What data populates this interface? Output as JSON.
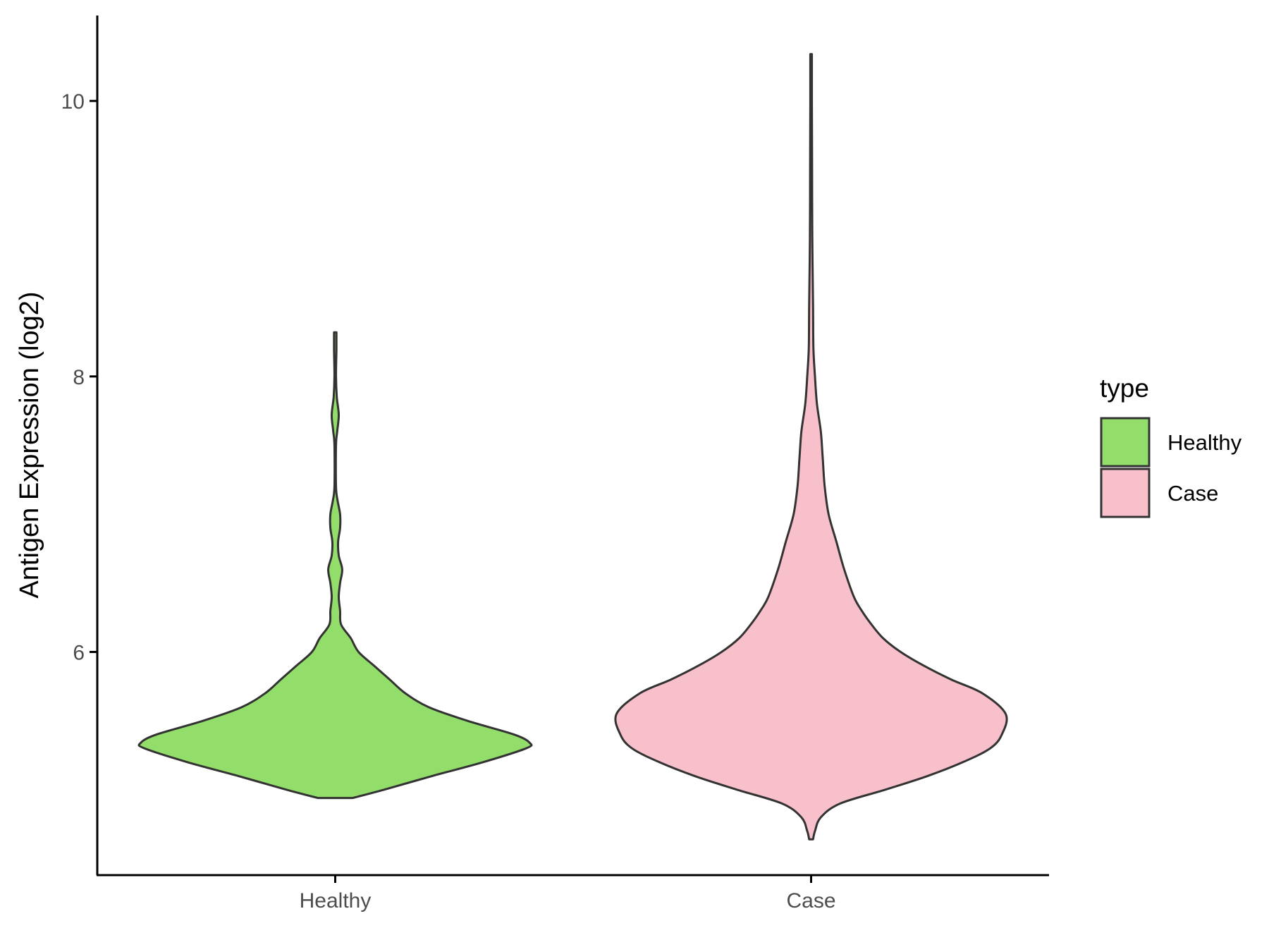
{
  "chart_data": {
    "type": "violin",
    "title": "",
    "xlabel": "",
    "ylabel": "Antigen Expression (log2)",
    "ylim": [
      4.38,
      10.62
    ],
    "y_ticks": [
      6,
      8,
      10
    ],
    "y_tick_labels": [
      "6",
      "8",
      "10"
    ],
    "grid": false,
    "legend": {
      "title": "type",
      "position": "right",
      "entries": [
        "Healthy",
        "Case"
      ]
    },
    "categories": [
      "Healthy",
      "Case"
    ],
    "series": [
      {
        "name": "Healthy",
        "color": "#93DD6B",
        "density_profile": [
          [
            4.94,
            0.09
          ],
          [
            5.0,
            0.25
          ],
          [
            5.1,
            0.5
          ],
          [
            5.2,
            0.76
          ],
          [
            5.3,
            0.98
          ],
          [
            5.34,
            1.0
          ],
          [
            5.4,
            0.92
          ],
          [
            5.5,
            0.68
          ],
          [
            5.6,
            0.48
          ],
          [
            5.7,
            0.36
          ],
          [
            5.8,
            0.28
          ],
          [
            5.9,
            0.2
          ],
          [
            6.0,
            0.12
          ],
          [
            6.1,
            0.08
          ],
          [
            6.2,
            0.03
          ],
          [
            6.3,
            0.025
          ],
          [
            6.4,
            0.018
          ],
          [
            6.5,
            0.025
          ],
          [
            6.6,
            0.036
          ],
          [
            6.7,
            0.018
          ],
          [
            6.8,
            0.015
          ],
          [
            6.9,
            0.025
          ],
          [
            7.0,
            0.025
          ],
          [
            7.1,
            0.012
          ],
          [
            7.2,
            0.004
          ],
          [
            7.5,
            0.004
          ],
          [
            7.6,
            0.01
          ],
          [
            7.72,
            0.018
          ],
          [
            7.85,
            0.008
          ],
          [
            8.0,
            0.004
          ],
          [
            8.2,
            0.006
          ],
          [
            8.32,
            0.006
          ]
        ]
      },
      {
        "name": "Case",
        "color": "#F8C0CB",
        "density_profile": [
          [
            4.64,
            0.01
          ],
          [
            4.7,
            0.02
          ],
          [
            4.8,
            0.05
          ],
          [
            4.9,
            0.15
          ],
          [
            5.0,
            0.38
          ],
          [
            5.1,
            0.6
          ],
          [
            5.2,
            0.78
          ],
          [
            5.3,
            0.92
          ],
          [
            5.4,
            0.98
          ],
          [
            5.55,
            1.0
          ],
          [
            5.7,
            0.88
          ],
          [
            5.8,
            0.72
          ],
          [
            5.9,
            0.58
          ],
          [
            6.0,
            0.46
          ],
          [
            6.1,
            0.37
          ],
          [
            6.2,
            0.31
          ],
          [
            6.3,
            0.26
          ],
          [
            6.4,
            0.22
          ],
          [
            6.6,
            0.17
          ],
          [
            6.8,
            0.13
          ],
          [
            7.0,
            0.09
          ],
          [
            7.2,
            0.07
          ],
          [
            7.4,
            0.06
          ],
          [
            7.6,
            0.05
          ],
          [
            7.8,
            0.03
          ],
          [
            8.0,
            0.02
          ],
          [
            8.2,
            0.012
          ],
          [
            8.5,
            0.01
          ],
          [
            9.0,
            0.006
          ],
          [
            9.5,
            0.005
          ],
          [
            10.0,
            0.004
          ],
          [
            10.34,
            0.004
          ]
        ]
      }
    ]
  }
}
